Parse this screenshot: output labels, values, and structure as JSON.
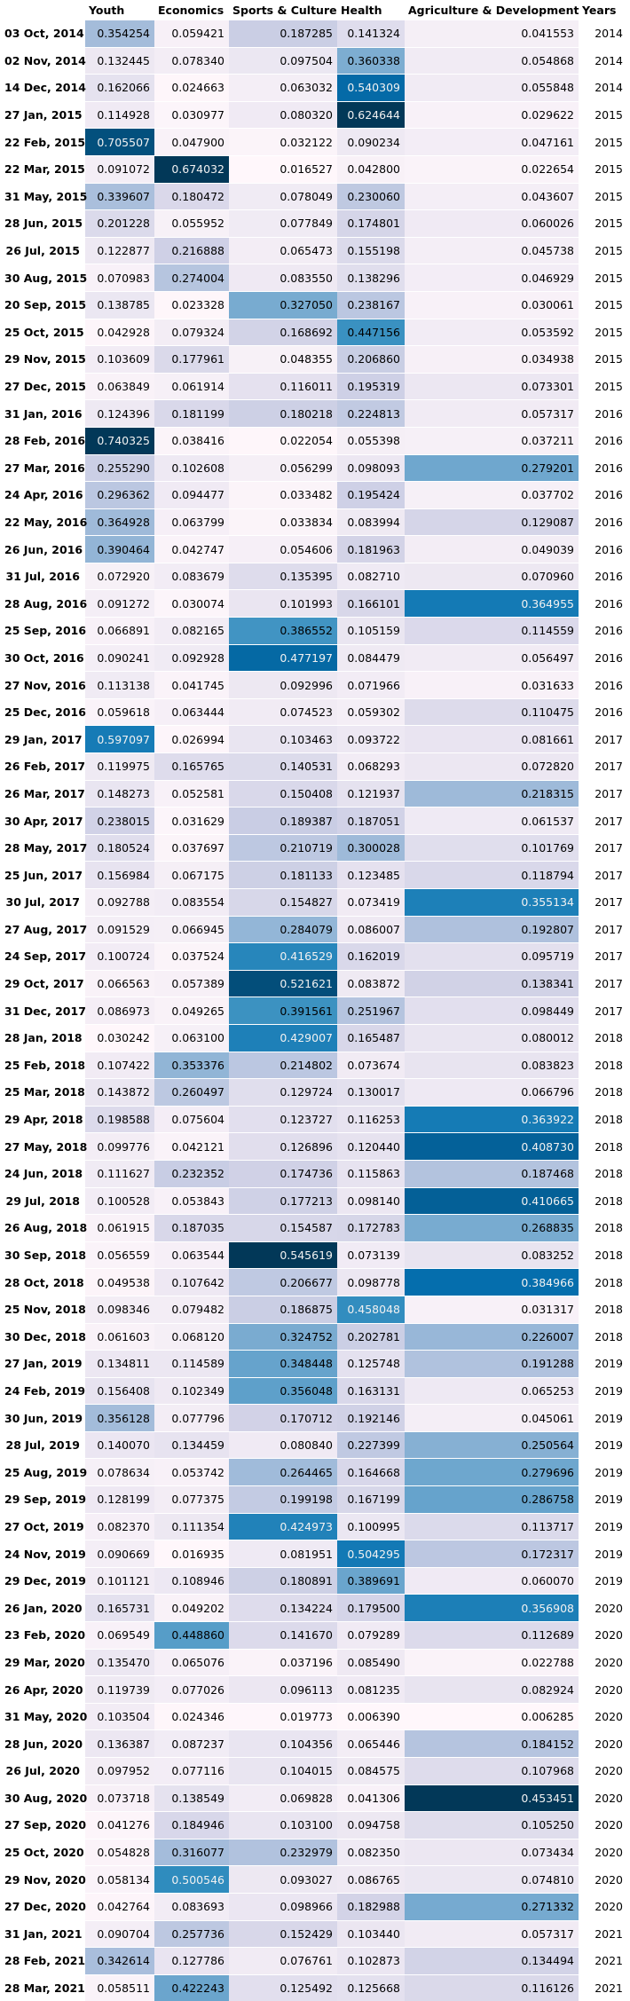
{
  "columns": [
    "",
    "Youth",
    "Economics",
    "Sports & Culture",
    "Health",
    "Agriculture & Development",
    "Years"
  ],
  "rows": [
    {
      "date": "03 Oct, 2014",
      "youth": "0.354254",
      "econ": "0.059421",
      "sport": "0.187285",
      "health": "0.141324",
      "agri": "0.041553",
      "year": "2014"
    },
    {
      "date": "02 Nov, 2014",
      "youth": "0.132445",
      "econ": "0.078340",
      "sport": "0.097504",
      "health": "0.360338",
      "agri": "0.054868",
      "year": "2014"
    },
    {
      "date": "14 Dec, 2014",
      "youth": "0.162066",
      "econ": "0.024663",
      "sport": "0.063032",
      "health": "0.540309",
      "agri": "0.055848",
      "year": "2014"
    },
    {
      "date": "27 Jan, 2015",
      "youth": "0.114928",
      "econ": "0.030977",
      "sport": "0.080320",
      "health": "0.624644",
      "agri": "0.029622",
      "year": "2015"
    },
    {
      "date": "22 Feb, 2015",
      "youth": "0.705507",
      "econ": "0.047900",
      "sport": "0.032122",
      "health": "0.090234",
      "agri": "0.047161",
      "year": "2015"
    },
    {
      "date": "22 Mar, 2015",
      "youth": "0.091072",
      "econ": "0.674032",
      "sport": "0.016527",
      "health": "0.042800",
      "agri": "0.022654",
      "year": "2015"
    },
    {
      "date": "31 May, 2015",
      "youth": "0.339607",
      "econ": "0.180472",
      "sport": "0.078049",
      "health": "0.230060",
      "agri": "0.043607",
      "year": "2015"
    },
    {
      "date": "28 Jun, 2015",
      "youth": "0.201228",
      "econ": "0.055952",
      "sport": "0.077849",
      "health": "0.174801",
      "agri": "0.060026",
      "year": "2015"
    },
    {
      "date": "26 Jul, 2015",
      "youth": "0.122877",
      "econ": "0.216888",
      "sport": "0.065473",
      "health": "0.155198",
      "agri": "0.045738",
      "year": "2015"
    },
    {
      "date": "30 Aug, 2015",
      "youth": "0.070983",
      "econ": "0.274004",
      "sport": "0.083550",
      "health": "0.138296",
      "agri": "0.046929",
      "year": "2015"
    },
    {
      "date": "20 Sep, 2015",
      "youth": "0.138785",
      "econ": "0.023328",
      "sport": "0.327050",
      "health": "0.238167",
      "agri": "0.030061",
      "year": "2015"
    },
    {
      "date": "25 Oct, 2015",
      "youth": "0.042928",
      "econ": "0.079324",
      "sport": "0.168692",
      "health": "0.447156",
      "agri": "0.053592",
      "year": "2015"
    },
    {
      "date": "29 Nov, 2015",
      "youth": "0.103609",
      "econ": "0.177961",
      "sport": "0.048355",
      "health": "0.206860",
      "agri": "0.034938",
      "year": "2015"
    },
    {
      "date": "27 Dec, 2015",
      "youth": "0.063849",
      "econ": "0.061914",
      "sport": "0.116011",
      "health": "0.195319",
      "agri": "0.073301",
      "year": "2015"
    },
    {
      "date": "31 Jan, 2016",
      "youth": "0.124396",
      "econ": "0.181199",
      "sport": "0.180218",
      "health": "0.224813",
      "agri": "0.057317",
      "year": "2016"
    },
    {
      "date": "28 Feb, 2016",
      "youth": "0.740325",
      "econ": "0.038416",
      "sport": "0.022054",
      "health": "0.055398",
      "agri": "0.037211",
      "year": "2016"
    },
    {
      "date": "27 Mar, 2016",
      "youth": "0.255290",
      "econ": "0.102608",
      "sport": "0.056299",
      "health": "0.098093",
      "agri": "0.279201",
      "year": "2016"
    },
    {
      "date": "24 Apr, 2016",
      "youth": "0.296362",
      "econ": "0.094477",
      "sport": "0.033482",
      "health": "0.195424",
      "agri": "0.037702",
      "year": "2016"
    },
    {
      "date": "22 May, 2016",
      "youth": "0.364928",
      "econ": "0.063799",
      "sport": "0.033834",
      "health": "0.083994",
      "agri": "0.129087",
      "year": "2016"
    },
    {
      "date": "26 Jun, 2016",
      "youth": "0.390464",
      "econ": "0.042747",
      "sport": "0.054606",
      "health": "0.181963",
      "agri": "0.049039",
      "year": "2016"
    },
    {
      "date": "31 Jul, 2016",
      "youth": "0.072920",
      "econ": "0.083679",
      "sport": "0.135395",
      "health": "0.082710",
      "agri": "0.070960",
      "year": "2016"
    },
    {
      "date": "28 Aug, 2016",
      "youth": "0.091272",
      "econ": "0.030074",
      "sport": "0.101993",
      "health": "0.166101",
      "agri": "0.364955",
      "year": "2016"
    },
    {
      "date": "25 Sep, 2016",
      "youth": "0.066891",
      "econ": "0.082165",
      "sport": "0.386552",
      "health": "0.105159",
      "agri": "0.114559",
      "year": "2016"
    },
    {
      "date": "30 Oct, 2016",
      "youth": "0.090241",
      "econ": "0.092928",
      "sport": "0.477197",
      "health": "0.084479",
      "agri": "0.056497",
      "year": "2016"
    },
    {
      "date": "27 Nov, 2016",
      "youth": "0.113138",
      "econ": "0.041745",
      "sport": "0.092996",
      "health": "0.071966",
      "agri": "0.031633",
      "year": "2016"
    },
    {
      "date": "25 Dec, 2016",
      "youth": "0.059618",
      "econ": "0.063444",
      "sport": "0.074523",
      "health": "0.059302",
      "agri": "0.110475",
      "year": "2016"
    },
    {
      "date": "29 Jan, 2017",
      "youth": "0.597097",
      "econ": "0.026994",
      "sport": "0.103463",
      "health": "0.093722",
      "agri": "0.081661",
      "year": "2017"
    },
    {
      "date": "26 Feb, 2017",
      "youth": "0.119975",
      "econ": "0.165765",
      "sport": "0.140531",
      "health": "0.068293",
      "agri": "0.072820",
      "year": "2017"
    },
    {
      "date": "26 Mar, 2017",
      "youth": "0.148273",
      "econ": "0.052581",
      "sport": "0.150408",
      "health": "0.121937",
      "agri": "0.218315",
      "year": "2017"
    },
    {
      "date": "30 Apr, 2017",
      "youth": "0.238015",
      "econ": "0.031629",
      "sport": "0.189387",
      "health": "0.187051",
      "agri": "0.061537",
      "year": "2017"
    },
    {
      "date": "28 May, 2017",
      "youth": "0.180524",
      "econ": "0.037697",
      "sport": "0.210719",
      "health": "0.300028",
      "agri": "0.101769",
      "year": "2017"
    },
    {
      "date": "25 Jun, 2017",
      "youth": "0.156984",
      "econ": "0.067175",
      "sport": "0.181133",
      "health": "0.123485",
      "agri": "0.118794",
      "year": "2017"
    },
    {
      "date": "30 Jul, 2017",
      "youth": "0.092788",
      "econ": "0.083554",
      "sport": "0.154827",
      "health": "0.073419",
      "agri": "0.355134",
      "year": "2017"
    },
    {
      "date": "27 Aug, 2017",
      "youth": "0.091529",
      "econ": "0.066945",
      "sport": "0.284079",
      "health": "0.086007",
      "agri": "0.192807",
      "year": "2017"
    },
    {
      "date": "24 Sep, 2017",
      "youth": "0.100724",
      "econ": "0.037524",
      "sport": "0.416529",
      "health": "0.162019",
      "agri": "0.095719",
      "year": "2017"
    },
    {
      "date": "29 Oct, 2017",
      "youth": "0.066563",
      "econ": "0.057389",
      "sport": "0.521621",
      "health": "0.083872",
      "agri": "0.138341",
      "year": "2017"
    },
    {
      "date": "31 Dec, 2017",
      "youth": "0.086973",
      "econ": "0.049265",
      "sport": "0.391561",
      "health": "0.251967",
      "agri": "0.098449",
      "year": "2017"
    },
    {
      "date": "28 Jan, 2018",
      "youth": "0.030242",
      "econ": "0.063100",
      "sport": "0.429007",
      "health": "0.165487",
      "agri": "0.080012",
      "year": "2018"
    },
    {
      "date": "25 Feb, 2018",
      "youth": "0.107422",
      "econ": "0.353376",
      "sport": "0.214802",
      "health": "0.073674",
      "agri": "0.083823",
      "year": "2018"
    },
    {
      "date": "25 Mar, 2018",
      "youth": "0.143872",
      "econ": "0.260497",
      "sport": "0.129724",
      "health": "0.130017",
      "agri": "0.066796",
      "year": "2018"
    },
    {
      "date": "29 Apr, 2018",
      "youth": "0.198588",
      "econ": "0.075604",
      "sport": "0.123727",
      "health": "0.116253",
      "agri": "0.363922",
      "year": "2018"
    },
    {
      "date": "27 May, 2018",
      "youth": "0.099776",
      "econ": "0.042121",
      "sport": "0.126896",
      "health": "0.120440",
      "agri": "0.408730",
      "year": "2018"
    },
    {
      "date": "24 Jun, 2018",
      "youth": "0.111627",
      "econ": "0.232352",
      "sport": "0.174736",
      "health": "0.115863",
      "agri": "0.187468",
      "year": "2018"
    },
    {
      "date": "29 Jul, 2018",
      "youth": "0.100528",
      "econ": "0.053843",
      "sport": "0.177213",
      "health": "0.098140",
      "agri": "0.410665",
      "year": "2018"
    },
    {
      "date": "26 Aug, 2018",
      "youth": "0.061915",
      "econ": "0.187035",
      "sport": "0.154587",
      "health": "0.172783",
      "agri": "0.268835",
      "year": "2018"
    },
    {
      "date": "30 Sep, 2018",
      "youth": "0.056559",
      "econ": "0.063544",
      "sport": "0.545619",
      "health": "0.073139",
      "agri": "0.083252",
      "year": "2018"
    },
    {
      "date": "28 Oct, 2018",
      "youth": "0.049538",
      "econ": "0.107642",
      "sport": "0.206677",
      "health": "0.098778",
      "agri": "0.384966",
      "year": "2018"
    },
    {
      "date": "25 Nov, 2018",
      "youth": "0.098346",
      "econ": "0.079482",
      "sport": "0.186875",
      "health": "0.458048",
      "agri": "0.031317",
      "year": "2018"
    },
    {
      "date": "30 Dec, 2018",
      "youth": "0.061603",
      "econ": "0.068120",
      "sport": "0.324752",
      "health": "0.202781",
      "agri": "0.226007",
      "year": "2018"
    },
    {
      "date": "27 Jan, 2019",
      "youth": "0.134811",
      "econ": "0.114589",
      "sport": "0.348448",
      "health": "0.125748",
      "agri": "0.191288",
      "year": "2019"
    },
    {
      "date": "24 Feb, 2019",
      "youth": "0.156408",
      "econ": "0.102349",
      "sport": "0.356048",
      "health": "0.163131",
      "agri": "0.065253",
      "year": "2019"
    },
    {
      "date": "30 Jun, 2019",
      "youth": "0.356128",
      "econ": "0.077796",
      "sport": "0.170712",
      "health": "0.192146",
      "agri": "0.045061",
      "year": "2019"
    },
    {
      "date": "28 Jul, 2019",
      "youth": "0.140070",
      "econ": "0.134459",
      "sport": "0.080840",
      "health": "0.227399",
      "agri": "0.250564",
      "year": "2019"
    },
    {
      "date": "25 Aug, 2019",
      "youth": "0.078634",
      "econ": "0.053742",
      "sport": "0.264465",
      "health": "0.164668",
      "agri": "0.279696",
      "year": "2019"
    },
    {
      "date": "29 Sep, 2019",
      "youth": "0.128199",
      "econ": "0.077375",
      "sport": "0.199198",
      "health": "0.167199",
      "agri": "0.286758",
      "year": "2019"
    },
    {
      "date": "27 Oct, 2019",
      "youth": "0.082370",
      "econ": "0.111354",
      "sport": "0.424973",
      "health": "0.100995",
      "agri": "0.113717",
      "year": "2019"
    },
    {
      "date": "24 Nov, 2019",
      "youth": "0.090669",
      "econ": "0.016935",
      "sport": "0.081951",
      "health": "0.504295",
      "agri": "0.172317",
      "year": "2019"
    },
    {
      "date": "29 Dec, 2019",
      "youth": "0.101121",
      "econ": "0.108946",
      "sport": "0.180891",
      "health": "0.389691",
      "agri": "0.060070",
      "year": "2019"
    },
    {
      "date": "26 Jan, 2020",
      "youth": "0.165731",
      "econ": "0.049202",
      "sport": "0.134224",
      "health": "0.179500",
      "agri": "0.356908",
      "year": "2020"
    },
    {
      "date": "23 Feb, 2020",
      "youth": "0.069549",
      "econ": "0.448860",
      "sport": "0.141670",
      "health": "0.079289",
      "agri": "0.112689",
      "year": "2020"
    },
    {
      "date": "29 Mar, 2020",
      "youth": "0.135470",
      "econ": "0.065076",
      "sport": "0.037196",
      "health": "0.085490",
      "agri": "0.022788",
      "year": "2020"
    },
    {
      "date": "26 Apr, 2020",
      "youth": "0.119739",
      "econ": "0.077026",
      "sport": "0.096113",
      "health": "0.081235",
      "agri": "0.082924",
      "year": "2020"
    },
    {
      "date": "31 May, 2020",
      "youth": "0.103504",
      "econ": "0.024346",
      "sport": "0.019773",
      "health": "0.006390",
      "agri": "0.006285",
      "year": "2020"
    },
    {
      "date": "28 Jun, 2020",
      "youth": "0.136387",
      "econ": "0.087237",
      "sport": "0.104356",
      "health": "0.065446",
      "agri": "0.184152",
      "year": "2020"
    },
    {
      "date": "26 Jul, 2020",
      "youth": "0.097952",
      "econ": "0.077116",
      "sport": "0.104015",
      "health": "0.084575",
      "agri": "0.107968",
      "year": "2020"
    },
    {
      "date": "30 Aug, 2020",
      "youth": "0.073718",
      "econ": "0.138549",
      "sport": "0.069828",
      "health": "0.041306",
      "agri": "0.453451",
      "year": "2020"
    },
    {
      "date": "27 Sep, 2020",
      "youth": "0.041276",
      "econ": "0.184946",
      "sport": "0.103100",
      "health": "0.094758",
      "agri": "0.105250",
      "year": "2020"
    },
    {
      "date": "25 Oct, 2020",
      "youth": "0.054828",
      "econ": "0.316077",
      "sport": "0.232979",
      "health": "0.082350",
      "agri": "0.073434",
      "year": "2020"
    },
    {
      "date": "29 Nov, 2020",
      "youth": "0.058134",
      "econ": "0.500546",
      "sport": "0.093027",
      "health": "0.086765",
      "agri": "0.074810",
      "year": "2020"
    },
    {
      "date": "27 Dec, 2020",
      "youth": "0.042764",
      "econ": "0.083693",
      "sport": "0.098966",
      "health": "0.182988",
      "agri": "0.271332",
      "year": "2020"
    },
    {
      "date": "31 Jan, 2021",
      "youth": "0.090704",
      "econ": "0.257736",
      "sport": "0.152429",
      "health": "0.103440",
      "agri": "0.057317",
      "year": "2021"
    },
    {
      "date": "28 Feb, 2021",
      "youth": "0.342614",
      "econ": "0.127786",
      "sport": "0.076761",
      "health": "0.102873",
      "agri": "0.134494",
      "year": "2021"
    },
    {
      "date": "28 Mar, 2021",
      "youth": "0.058511",
      "econ": "0.422243",
      "sport": "0.125492",
      "health": "0.125668",
      "agri": "0.116126",
      "year": "2021"
    }
  ],
  "colors": {
    "scale_low": "#fff7fb",
    "scale_mid": "#a6bddb",
    "scale_high": "#023858",
    "text_dark": "#000000",
    "text_light": "#f1f1f1"
  }
}
